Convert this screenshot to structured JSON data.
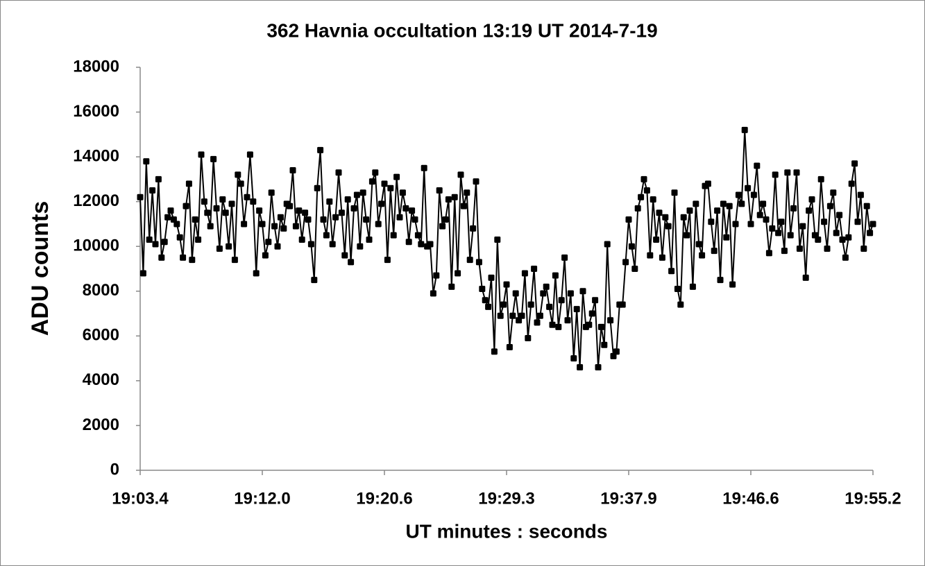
{
  "chart_data": {
    "type": "line",
    "title": "362 Havnia occultation 13:19 UT 2014-7-19",
    "x_label": "UT minutes : seconds",
    "y_label": "ADU counts",
    "color": "#000000",
    "ylim": [
      0,
      18000
    ],
    "yticks": [
      0,
      2000,
      4000,
      6000,
      8000,
      10000,
      12000,
      14000,
      16000,
      18000
    ],
    "categories": [
      "19:03.4",
      null,
      null,
      null,
      null,
      null,
      null,
      null,
      null,
      null,
      null,
      null,
      null,
      null,
      null,
      null,
      null,
      null,
      null,
      null,
      null,
      null,
      null,
      null,
      null,
      null,
      null,
      null,
      null,
      null,
      null,
      null,
      null,
      null,
      null,
      null,
      null,
      null,
      null,
      null,
      "19:12.0",
      null,
      null,
      null,
      null,
      null,
      null,
      null,
      null,
      null,
      null,
      null,
      null,
      null,
      null,
      null,
      null,
      null,
      null,
      null,
      null,
      null,
      null,
      null,
      null,
      null,
      null,
      null,
      null,
      null,
      null,
      null,
      null,
      null,
      null,
      null,
      null,
      null,
      null,
      null,
      "19:20.6",
      null,
      null,
      null,
      null,
      null,
      null,
      null,
      null,
      null,
      null,
      null,
      null,
      null,
      null,
      null,
      null,
      null,
      null,
      null,
      null,
      null,
      null,
      null,
      null,
      null,
      null,
      null,
      null,
      null,
      null,
      null,
      null,
      null,
      null,
      null,
      null,
      null,
      null,
      null,
      "19:29.3",
      null,
      null,
      null,
      null,
      null,
      null,
      null,
      null,
      null,
      null,
      null,
      null,
      null,
      null,
      null,
      null,
      null,
      null,
      null,
      null,
      null,
      null,
      null,
      null,
      null,
      null,
      null,
      null,
      null,
      null,
      null,
      null,
      null,
      null,
      null,
      null,
      null,
      null,
      null,
      "19:37.9",
      null,
      null,
      null,
      null,
      null,
      null,
      null,
      null,
      null,
      null,
      null,
      null,
      null,
      null,
      null,
      null,
      null,
      null,
      null,
      null,
      null,
      null,
      null,
      null,
      null,
      null,
      null,
      null,
      null,
      null,
      null,
      null,
      null,
      null,
      null,
      null,
      null,
      null,
      null,
      "19:46.6",
      null,
      null,
      null,
      null,
      null,
      null,
      null,
      null,
      null,
      null,
      null,
      null,
      null,
      null,
      null,
      null,
      null,
      null,
      null,
      null,
      null,
      null,
      null,
      null,
      null,
      null,
      null,
      null,
      null,
      null,
      null,
      null,
      null,
      null,
      null,
      null,
      null,
      null,
      null,
      "19:55.2"
    ],
    "values": [
      12200,
      8800,
      13800,
      10300,
      12500,
      10100,
      13000,
      9500,
      10200,
      11300,
      11600,
      11200,
      11000,
      10400,
      9500,
      11800,
      12800,
      9400,
      11200,
      10300,
      14100,
      12000,
      11500,
      10900,
      13900,
      11700,
      9900,
      12100,
      11500,
      10000,
      11900,
      9400,
      13200,
      12800,
      11000,
      12200,
      14100,
      12000,
      8800,
      11600,
      11000,
      9600,
      10200,
      12400,
      10900,
      10000,
      11300,
      10800,
      11900,
      11800,
      13400,
      10900,
      11600,
      10300,
      11500,
      11200,
      10100,
      8500,
      12600,
      14300,
      11200,
      10500,
      12000,
      10100,
      11300,
      13300,
      11500,
      9600,
      12100,
      9300,
      11700,
      12300,
      10000,
      12400,
      11200,
      10300,
      12900,
      13300,
      11000,
      11900,
      12800,
      9400,
      12600,
      10500,
      13100,
      11300,
      12400,
      11700,
      10200,
      11600,
      11200,
      10500,
      10100,
      13500,
      10000,
      10100,
      7900,
      8700,
      12500,
      10900,
      11200,
      12100,
      8200,
      12200,
      8800,
      13200,
      11800,
      12400,
      9400,
      10800,
      12900,
      9300,
      8100,
      7600,
      7300,
      8600,
      5300,
      10300,
      6900,
      7400,
      8300,
      5500,
      6900,
      7900,
      6700,
      6900,
      8800,
      5900,
      7400,
      9000,
      6600,
      6900,
      7900,
      8200,
      7300,
      6500,
      8700,
      6400,
      7600,
      9500,
      6700,
      7900,
      5000,
      7200,
      4600,
      8000,
      6400,
      6500,
      7000,
      7600,
      4600,
      6400,
      5600,
      10100,
      6700,
      5100,
      5300,
      7400,
      7400,
      9300,
      11200,
      10000,
      9000,
      11700,
      12200,
      13000,
      12500,
      9600,
      12100,
      10300,
      11500,
      9500,
      11300,
      10900,
      8900,
      12400,
      8100,
      7400,
      11300,
      10500,
      11600,
      8200,
      11900,
      10100,
      9600,
      12700,
      12800,
      11100,
      9800,
      11600,
      8500,
      11900,
      10400,
      11800,
      8300,
      11000,
      12300,
      11900,
      15200,
      12600,
      11000,
      12300,
      13600,
      11400,
      11900,
      11200,
      9700,
      10800,
      13200,
      10600,
      11100,
      9800,
      13300,
      10500,
      11700,
      13300,
      9900,
      10900,
      8600,
      11600,
      12100,
      10500,
      10300,
      13000,
      11100,
      9900,
      11800,
      12400,
      10600,
      11400,
      10300,
      9500,
      10400,
      12800,
      13700,
      11100,
      12300,
      9900,
      11800,
      10600,
      11000
    ]
  }
}
